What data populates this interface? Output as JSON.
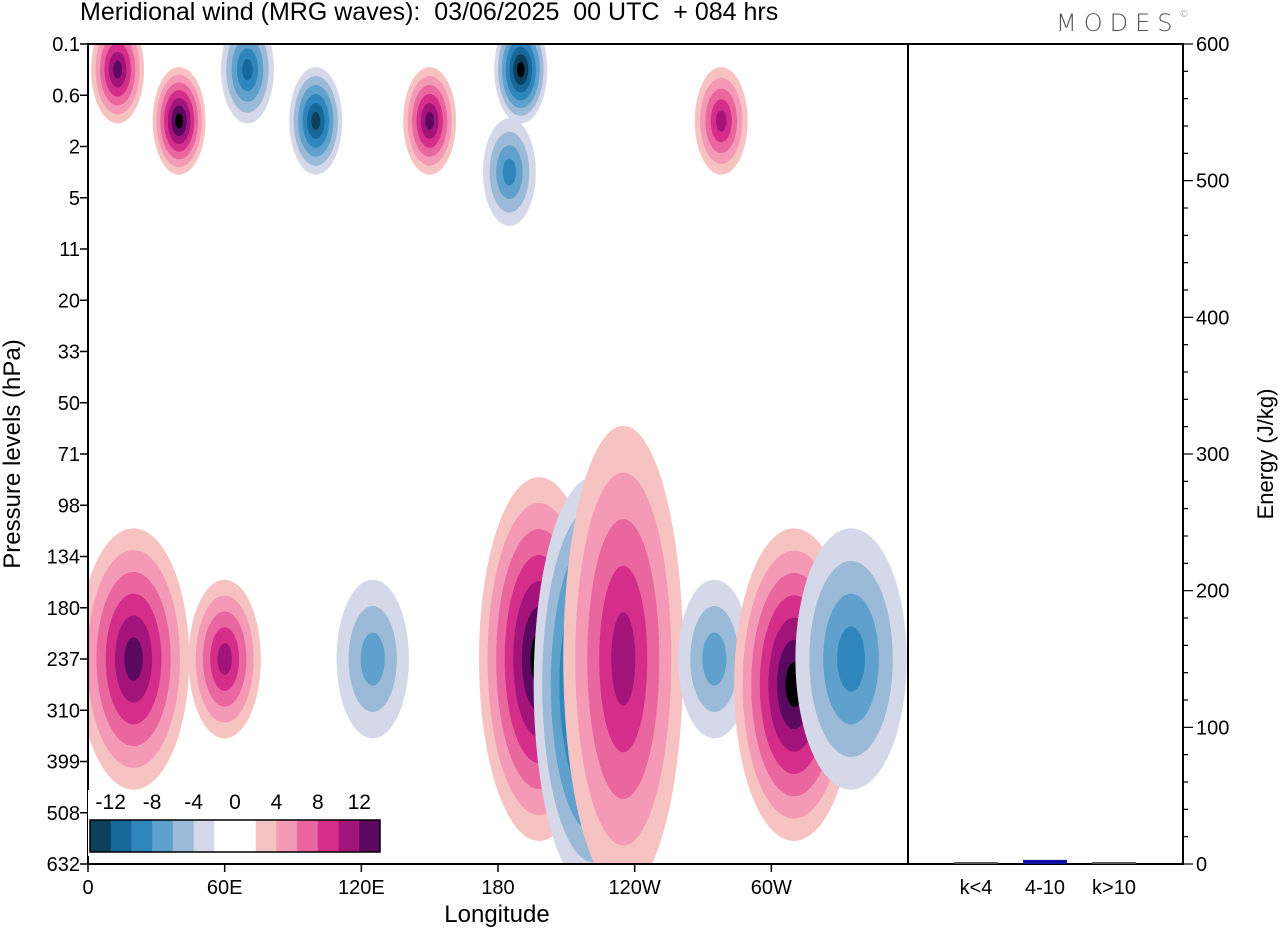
{
  "logo": {
    "text": "MODES",
    "mark": "©"
  },
  "chart_data": [
    {
      "type": "heatmap",
      "title": "Meridional wind (MRG waves):  03/06/2025  00 UTC  + 084 hrs",
      "xlabel": "Longitude",
      "ylabel": "Pressure levels (hPa)",
      "x_ticks": [
        "0",
        "60E",
        "120E",
        "180",
        "120W",
        "60W"
      ],
      "x_range_deg_east": [
        0,
        360
      ],
      "y_ticks": [
        "0.1",
        "0.6",
        "2",
        "5",
        "11",
        "20",
        "33",
        "50",
        "71",
        "98",
        "134",
        "180",
        "237",
        "310",
        "399",
        "508",
        "632"
      ],
      "y_axis_inverted": true,
      "colorbar": {
        "tick_labels": [
          "-12",
          "-8",
          "-4",
          "0",
          "4",
          "8",
          "12"
        ],
        "colors": [
          "#0b3f5c",
          "#16689a",
          "#2f86bd",
          "#5fa1cc",
          "#9bbad8",
          "#d4d8e8",
          "#ffffff",
          "#ffffff",
          "#f7c2c2",
          "#f49ab7",
          "#e9669f",
          "#d42d8a",
          "#a3147a",
          "#5a0860"
        ]
      },
      "features": [
        {
          "sign": "positive",
          "lon": 13,
          "level_top": "0.1",
          "level_bottom": "0.6",
          "max_abs": 12
        },
        {
          "sign": "positive",
          "lon": 40,
          "level_top": "0.6",
          "level_bottom": "2",
          "max_abs": 14
        },
        {
          "sign": "negative",
          "lon": 70,
          "level_top": "0.1",
          "level_bottom": "0.6",
          "max_abs": 10
        },
        {
          "sign": "negative",
          "lon": 100,
          "level_top": "0.6",
          "level_bottom": "2",
          "max_abs": 12
        },
        {
          "sign": "positive",
          "lon": 150,
          "level_top": "0.6",
          "level_bottom": "2",
          "max_abs": 12
        },
        {
          "sign": "negative",
          "lon": 190,
          "level_top": "0.1",
          "level_bottom": "0.6",
          "max_abs": 14
        },
        {
          "sign": "negative",
          "lon": 185,
          "level_top": "2",
          "level_bottom": "5",
          "max_abs": 8
        },
        {
          "sign": "positive",
          "lon": 278,
          "level_top": "0.6",
          "level_bottom": "2",
          "max_abs": 10
        },
        {
          "sign": "positive",
          "lon": 20,
          "level_top": "134",
          "level_bottom": "399",
          "max_abs": 12
        },
        {
          "sign": "positive",
          "lon": 60,
          "level_top": "180",
          "level_bottom": "310",
          "max_abs": 10
        },
        {
          "sign": "negative",
          "lon": 125,
          "level_top": "180",
          "level_bottom": "310",
          "max_abs": 6
        },
        {
          "sign": "positive",
          "lon": 198,
          "level_top": "98",
          "level_bottom": "508",
          "max_abs": 14
        },
        {
          "sign": "negative",
          "lon": 222,
          "level_top": "98",
          "level_bottom": "632",
          "max_abs": 14
        },
        {
          "sign": "positive",
          "lon": 235,
          "level_top": "71",
          "level_bottom": "632",
          "max_abs": 10
        },
        {
          "sign": "negative",
          "lon": 275,
          "level_top": "180",
          "level_bottom": "310",
          "max_abs": 6
        },
        {
          "sign": "positive",
          "lon": 310,
          "level_top": "134",
          "level_bottom": "508",
          "max_abs": 14
        },
        {
          "sign": "negative",
          "lon": 335,
          "level_top": "134",
          "level_bottom": "399",
          "max_abs": 8
        }
      ]
    },
    {
      "type": "bar",
      "ylabel": "Energy (J/kg)",
      "ylim": [
        0,
        600
      ],
      "y_ticks": [
        "0",
        "100",
        "200",
        "300",
        "400",
        "500",
        "600"
      ],
      "categories": [
        "k<4",
        "4-10",
        "k>10"
      ],
      "values": [
        0.5,
        3,
        0.5
      ],
      "bar_color": "#1010a0"
    }
  ]
}
